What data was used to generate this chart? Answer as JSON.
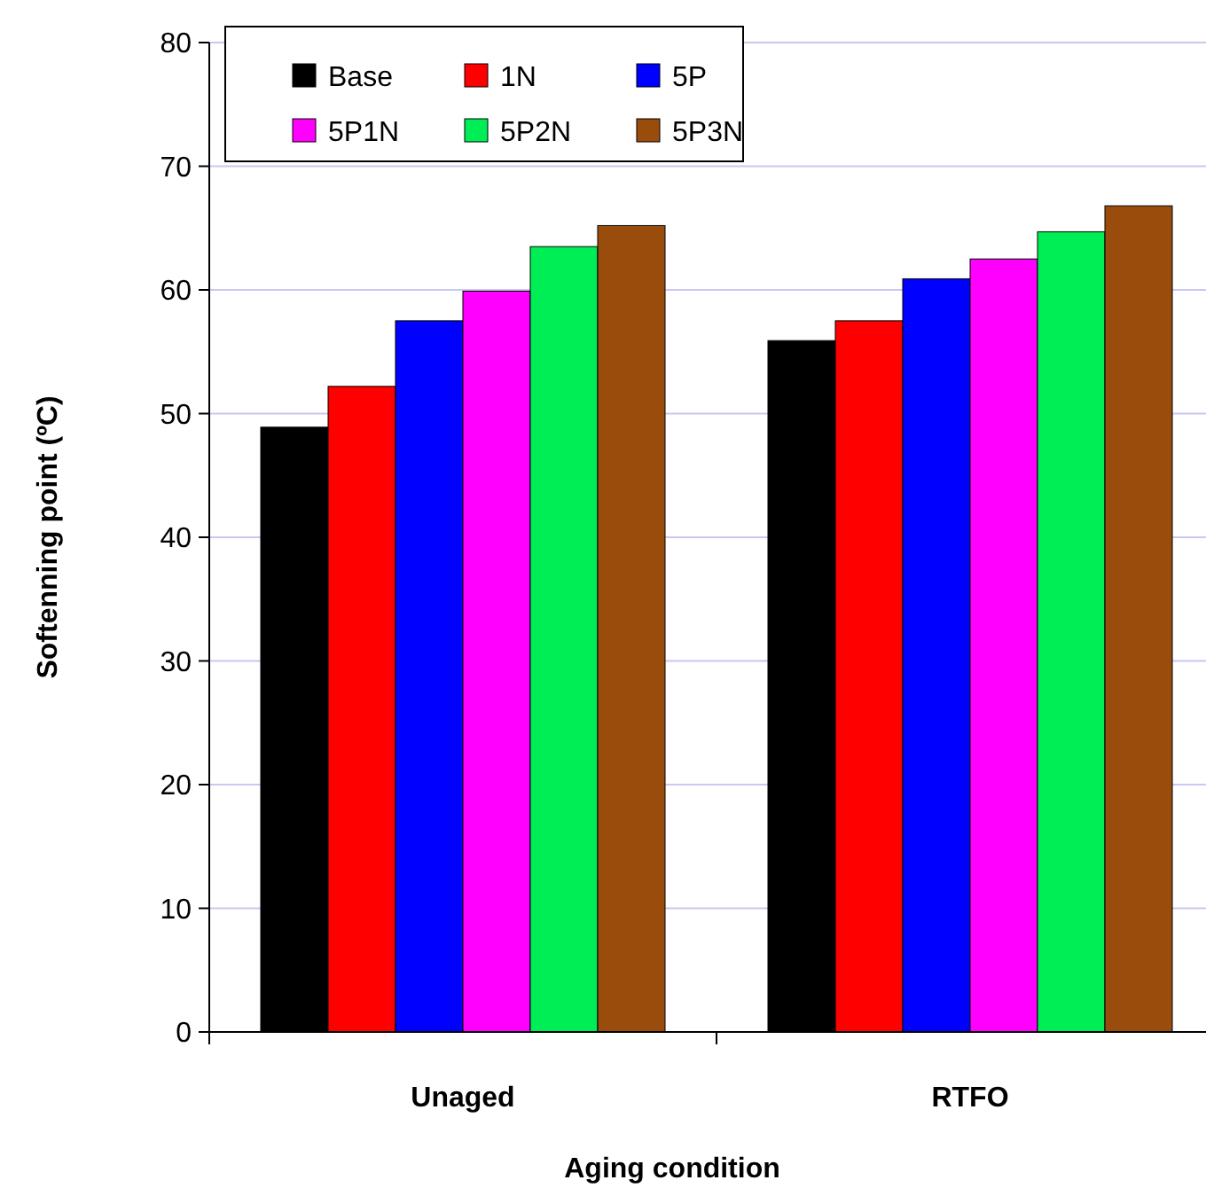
{
  "chart_data": {
    "type": "bar",
    "xlabel": "Aging condition",
    "ylabel": "Softenning point (ºC)",
    "categories": [
      "Unaged",
      "RTFO"
    ],
    "series": [
      {
        "name": "Base",
        "color": "#000000",
        "values": [
          48.9,
          55.9
        ]
      },
      {
        "name": "1N",
        "color": "#ff0000",
        "values": [
          52.2,
          57.5
        ]
      },
      {
        "name": "5P",
        "color": "#0000ff",
        "values": [
          57.5,
          60.9
        ]
      },
      {
        "name": "5P1N",
        "color": "#ff00ff",
        "values": [
          59.9,
          62.5
        ]
      },
      {
        "name": "5P2N",
        "color": "#00ee55",
        "values": [
          63.5,
          64.7
        ]
      },
      {
        "name": "5P3N",
        "color": "#994c0c",
        "values": [
          65.2,
          66.8
        ]
      }
    ],
    "ylim": [
      0,
      80
    ],
    "yticks": [
      0,
      10,
      20,
      30,
      40,
      50,
      60,
      70,
      80
    ],
    "grid": "y",
    "legend": "top left"
  }
}
